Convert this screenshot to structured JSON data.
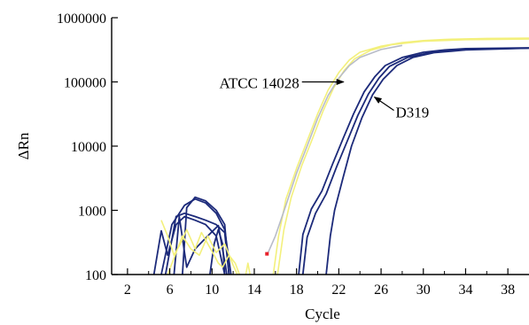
{
  "chart_data": {
    "type": "line",
    "xlabel": "Cycle",
    "ylabel": "ΔRn",
    "y_scale": "log",
    "xlim": [
      0.5,
      40
    ],
    "ylim": [
      100,
      1000000
    ],
    "x_ticks": [
      2,
      6,
      10,
      14,
      18,
      22,
      26,
      30,
      34,
      38
    ],
    "x_minor_ticks": [
      4,
      8,
      12,
      16,
      20,
      24,
      28,
      32,
      36
    ],
    "y_ticks": [
      100,
      1000,
      10000,
      100000,
      1000000
    ],
    "y_tick_labels": [
      "100",
      "1000",
      "10000",
      "100000",
      "1000000"
    ],
    "x_tick_labels": [
      "2",
      "6",
      "10",
      "14",
      "18",
      "22",
      "26",
      "30",
      "34",
      "38"
    ],
    "colors": {
      "yellow": "#f3f07c",
      "navy": "#1c2a7a",
      "gray": "#b8bcc8",
      "red": "#e8202a"
    },
    "series": [
      {
        "color": "yellow",
        "points": [
          [
            15.8,
            100
          ],
          [
            16.3,
            400
          ],
          [
            17,
            1500
          ],
          [
            18,
            4500
          ],
          [
            19,
            12000
          ],
          [
            20,
            32000
          ],
          [
            21,
            75000
          ],
          [
            22,
            140000
          ],
          [
            23,
            220000
          ],
          [
            24,
            290000
          ],
          [
            26,
            360000
          ],
          [
            28,
            410000
          ],
          [
            30,
            440000
          ],
          [
            32,
            460000
          ],
          [
            36,
            475000
          ],
          [
            40,
            480000
          ]
        ]
      },
      {
        "color": "yellow",
        "points": [
          [
            16.2,
            100
          ],
          [
            16.8,
            500
          ],
          [
            17.5,
            1600
          ],
          [
            18.5,
            5000
          ],
          [
            19.5,
            13000
          ],
          [
            20.5,
            35000
          ],
          [
            21.5,
            80000
          ],
          [
            22.5,
            150000
          ],
          [
            23.5,
            230000
          ],
          [
            25,
            310000
          ],
          [
            27,
            380000
          ],
          [
            30,
            430000
          ],
          [
            34,
            455000
          ],
          [
            40,
            465000
          ]
        ]
      },
      {
        "color": "gray",
        "points": [
          [
            15.2,
            200
          ],
          [
            16,
            400
          ],
          [
            17,
            1200
          ],
          [
            18,
            3800
          ],
          [
            19,
            10000
          ],
          [
            20,
            27000
          ],
          [
            21,
            62000
          ],
          [
            22,
            115000
          ],
          [
            23,
            180000
          ],
          [
            24,
            240000
          ],
          [
            26,
            320000
          ],
          [
            28,
            370000
          ]
        ]
      },
      {
        "color": "navy",
        "points": [
          [
            18.2,
            100
          ],
          [
            18.6,
            420
          ],
          [
            19.4,
            1050
          ],
          [
            20.4,
            2000
          ],
          [
            21.4,
            5200
          ],
          [
            22.4,
            13000
          ],
          [
            23.4,
            32000
          ],
          [
            24.4,
            70000
          ],
          [
            25.4,
            120000
          ],
          [
            26.4,
            180000
          ],
          [
            28,
            240000
          ],
          [
            30,
            290000
          ],
          [
            32,
            315000
          ],
          [
            34,
            330000
          ],
          [
            40,
            340000
          ]
        ]
      },
      {
        "color": "navy",
        "points": [
          [
            18.6,
            100
          ],
          [
            19,
            380
          ],
          [
            19.8,
            900
          ],
          [
            20.8,
            1800
          ],
          [
            21.8,
            4800
          ],
          [
            22.8,
            12000
          ],
          [
            23.8,
            30000
          ],
          [
            24.8,
            65000
          ],
          [
            25.8,
            115000
          ],
          [
            26.8,
            175000
          ],
          [
            28.5,
            240000
          ],
          [
            31,
            295000
          ],
          [
            35,
            325000
          ],
          [
            40,
            335000
          ]
        ]
      },
      {
        "color": "navy",
        "points": [
          [
            20.8,
            100
          ],
          [
            21.2,
            400
          ],
          [
            21.6,
            1000
          ],
          [
            22.4,
            3200
          ],
          [
            23.2,
            10000
          ],
          [
            24.2,
            28000
          ],
          [
            25.2,
            63000
          ],
          [
            26.2,
            110000
          ],
          [
            27.5,
            180000
          ],
          [
            29,
            240000
          ],
          [
            31,
            285000
          ],
          [
            34,
            315000
          ],
          [
            40,
            335000
          ]
        ]
      },
      {
        "color": "navy",
        "points": [
          [
            4.5,
            100
          ],
          [
            5.2,
            480
          ],
          [
            5.8,
            200
          ],
          [
            6.6,
            600
          ],
          [
            7.4,
            800
          ],
          [
            8.4,
            700
          ],
          [
            9.4,
            600
          ],
          [
            10.4,
            400
          ],
          [
            11.2,
            100
          ]
        ]
      },
      {
        "color": "navy",
        "points": [
          [
            5.2,
            100
          ],
          [
            6.2,
            600
          ],
          [
            7.4,
            1200
          ],
          [
            8.4,
            1500
          ],
          [
            9.4,
            1300
          ],
          [
            10.4,
            900
          ],
          [
            11.2,
            500
          ],
          [
            11.8,
            100
          ]
        ]
      },
      {
        "color": "navy",
        "points": [
          [
            5.6,
            100
          ],
          [
            6.6,
            800
          ],
          [
            7.4,
            900
          ],
          [
            8.4,
            800
          ],
          [
            9.4,
            700
          ],
          [
            10.4,
            600
          ],
          [
            11.2,
            450
          ],
          [
            11.6,
            100
          ]
        ]
      },
      {
        "color": "navy",
        "points": [
          [
            7.2,
            100
          ],
          [
            7.6,
            1100
          ],
          [
            8.4,
            1600
          ],
          [
            9.4,
            1400
          ],
          [
            10.4,
            1000
          ],
          [
            11.2,
            600
          ],
          [
            11.6,
            100
          ]
        ]
      },
      {
        "color": "navy",
        "points": [
          [
            6.4,
            100
          ],
          [
            6.9,
            800
          ],
          [
            7.6,
            130
          ],
          [
            8.4,
            250
          ],
          [
            9.6,
            400
          ],
          [
            10.6,
            580
          ],
          [
            11.2,
            160
          ],
          [
            11.4,
            100
          ]
        ]
      },
      {
        "color": "navy",
        "points": [
          [
            9.8,
            100
          ],
          [
            10.2,
            300
          ],
          [
            10.6,
            500
          ],
          [
            11,
            300
          ],
          [
            11.2,
            100
          ]
        ]
      },
      {
        "color": "yellow",
        "points": [
          [
            5.2,
            700
          ],
          [
            5.8,
            400
          ],
          [
            6.4,
            200
          ],
          [
            7,
            300
          ],
          [
            7.6,
            500
          ],
          [
            8.4,
            250
          ],
          [
            9,
            450
          ],
          [
            9.6,
            300
          ],
          [
            10.2,
            200
          ],
          [
            10.6,
            150
          ],
          [
            11,
            130
          ],
          [
            11.6,
            200
          ],
          [
            12.2,
            150
          ],
          [
            12.6,
            100
          ]
        ]
      },
      {
        "color": "yellow",
        "points": [
          [
            5.8,
            100
          ],
          [
            6.4,
            180
          ],
          [
            7.2,
            400
          ],
          [
            8,
            250
          ],
          [
            8.8,
            200
          ],
          [
            9.6,
            400
          ],
          [
            10.4,
            220
          ],
          [
            11.2,
            300
          ],
          [
            12,
            140
          ],
          [
            12.4,
            100
          ]
        ]
      },
      {
        "color": "yellow",
        "points": [
          [
            13.2,
            100
          ],
          [
            13.4,
            150
          ],
          [
            13.6,
            100
          ]
        ]
      }
    ],
    "markers": [
      {
        "x": 15.2,
        "y": 210,
        "color": "red"
      }
    ],
    "annotations": [
      {
        "text": "ATCC 14028",
        "target_x": 22.7,
        "target_y": 100000
      },
      {
        "text": "D319",
        "target_x": 25.2,
        "target_y": 60000
      }
    ]
  }
}
